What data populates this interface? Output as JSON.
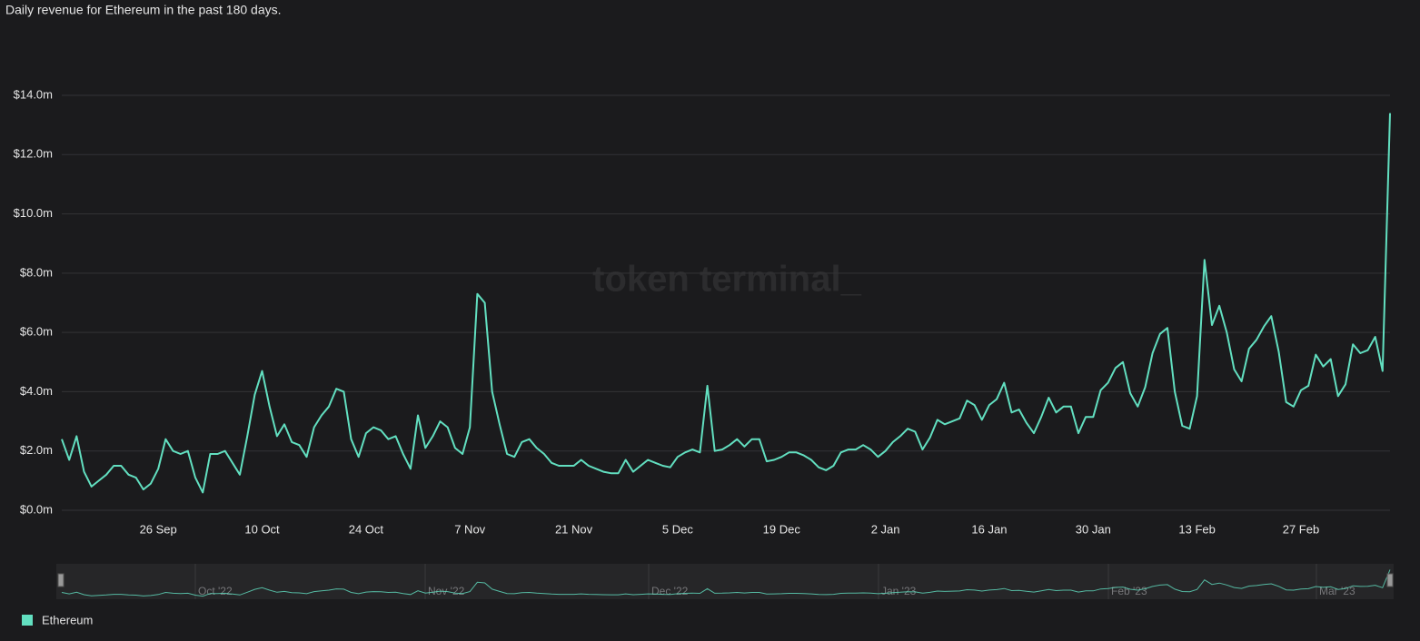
{
  "chart_data": {
    "type": "line",
    "title": "Daily revenue for Ethereum in the past 180 days.",
    "watermark": "token terminal_",
    "categories": [
      "13 Sep",
      "14 Sep",
      "15 Sep",
      "16 Sep",
      "17 Sep",
      "18 Sep",
      "19 Sep",
      "20 Sep",
      "21 Sep",
      "22 Sep",
      "23 Sep",
      "24 Sep",
      "25 Sep",
      "26 Sep",
      "27 Sep",
      "28 Sep",
      "29 Sep",
      "30 Sep",
      "1 Oct",
      "2 Oct",
      "3 Oct",
      "4 Oct",
      "5 Oct",
      "6 Oct",
      "7 Oct",
      "8 Oct",
      "9 Oct",
      "10 Oct",
      "11 Oct",
      "12 Oct",
      "13 Oct",
      "14 Oct",
      "15 Oct",
      "16 Oct",
      "17 Oct",
      "18 Oct",
      "19 Oct",
      "20 Oct",
      "21 Oct",
      "22 Oct",
      "23 Oct",
      "24 Oct",
      "25 Oct",
      "26 Oct",
      "27 Oct",
      "28 Oct",
      "29 Oct",
      "30 Oct",
      "31 Oct",
      "1 Nov",
      "2 Nov",
      "3 Nov",
      "4 Nov",
      "5 Nov",
      "6 Nov",
      "7 Nov",
      "8 Nov",
      "9 Nov",
      "10 Nov",
      "11 Nov",
      "12 Nov",
      "13 Nov",
      "14 Nov",
      "15 Nov",
      "16 Nov",
      "17 Nov",
      "18 Nov",
      "19 Nov",
      "20 Nov",
      "21 Nov",
      "22 Nov",
      "23 Nov",
      "24 Nov",
      "25 Nov",
      "26 Nov",
      "27 Nov",
      "28 Nov",
      "29 Nov",
      "30 Nov",
      "1 Dec",
      "2 Dec",
      "3 Dec",
      "4 Dec",
      "5 Dec",
      "6 Dec",
      "7 Dec",
      "8 Dec",
      "9 Dec",
      "10 Dec",
      "11 Dec",
      "12 Dec",
      "13 Dec",
      "14 Dec",
      "15 Dec",
      "16 Dec",
      "17 Dec",
      "18 Dec",
      "19 Dec",
      "20 Dec",
      "21 Dec",
      "22 Dec",
      "23 Dec",
      "24 Dec",
      "25 Dec",
      "26 Dec",
      "27 Dec",
      "28 Dec",
      "29 Dec",
      "30 Dec",
      "31 Dec",
      "1 Jan",
      "2 Jan",
      "3 Jan",
      "4 Jan",
      "5 Jan",
      "6 Jan",
      "7 Jan",
      "8 Jan",
      "9 Jan",
      "10 Jan",
      "11 Jan",
      "12 Jan",
      "13 Jan",
      "14 Jan",
      "15 Jan",
      "16 Jan",
      "17 Jan",
      "18 Jan",
      "19 Jan",
      "20 Jan",
      "21 Jan",
      "22 Jan",
      "23 Jan",
      "24 Jan",
      "25 Jan",
      "26 Jan",
      "27 Jan",
      "28 Jan",
      "29 Jan",
      "30 Jan",
      "31 Jan",
      "1 Feb",
      "2 Feb",
      "3 Feb",
      "4 Feb",
      "5 Feb",
      "6 Feb",
      "7 Feb",
      "8 Feb",
      "9 Feb",
      "10 Feb",
      "11 Feb",
      "12 Feb",
      "13 Feb",
      "14 Feb",
      "15 Feb",
      "16 Feb",
      "17 Feb",
      "18 Feb",
      "19 Feb",
      "20 Feb",
      "21 Feb",
      "22 Feb",
      "23 Feb",
      "24 Feb",
      "25 Feb",
      "26 Feb",
      "27 Feb",
      "28 Feb",
      "1 Mar",
      "2 Mar",
      "3 Mar",
      "4 Mar",
      "5 Mar",
      "6 Mar",
      "7 Mar",
      "8 Mar",
      "9 Mar",
      "10 Mar",
      "11 Mar"
    ],
    "series": [
      {
        "name": "Ethereum",
        "color": "#62dfc0",
        "values": [
          2.4,
          1.7,
          2.5,
          1.3,
          0.8,
          1.0,
          1.2,
          1.5,
          1.5,
          1.2,
          1.1,
          0.7,
          0.9,
          1.4,
          2.4,
          2.0,
          1.9,
          2.0,
          1.1,
          0.6,
          1.9,
          1.9,
          2.0,
          1.6,
          1.2,
          2.5,
          3.9,
          4.7,
          3.5,
          2.5,
          2.9,
          2.3,
          2.2,
          1.8,
          2.8,
          3.2,
          3.5,
          4.1,
          4.0,
          2.4,
          1.8,
          2.6,
          2.8,
          2.7,
          2.4,
          2.5,
          1.9,
          1.4,
          3.2,
          2.1,
          2.5,
          3.0,
          2.8,
          2.1,
          1.9,
          2.8,
          7.3,
          7.0,
          4.0,
          2.9,
          1.9,
          1.8,
          2.3,
          2.4,
          2.1,
          1.9,
          1.6,
          1.5,
          1.5,
          1.5,
          1.7,
          1.5,
          1.4,
          1.3,
          1.25,
          1.25,
          1.7,
          1.3,
          1.5,
          1.7,
          1.6,
          1.5,
          1.45,
          1.8,
          1.95,
          2.05,
          1.95,
          4.2,
          2.0,
          2.05,
          2.2,
          2.4,
          2.15,
          2.4,
          2.4,
          1.65,
          1.7,
          1.8,
          1.95,
          1.95,
          1.85,
          1.7,
          1.45,
          1.35,
          1.5,
          1.95,
          2.05,
          2.05,
          2.2,
          2.05,
          1.8,
          2.0,
          2.3,
          2.5,
          2.75,
          2.65,
          2.05,
          2.45,
          3.05,
          2.9,
          3.0,
          3.1,
          3.7,
          3.55,
          3.05,
          3.55,
          3.75,
          4.3,
          3.3,
          3.4,
          2.95,
          2.6,
          3.15,
          3.8,
          3.3,
          3.5,
          3.5,
          2.6,
          3.15,
          3.15,
          4.05,
          4.3,
          4.8,
          5.0,
          3.95,
          3.5,
          4.15,
          5.3,
          5.95,
          6.15,
          4.0,
          2.85,
          2.75,
          3.85,
          8.45,
          6.25,
          6.9,
          6.0,
          4.75,
          4.35,
          5.45,
          5.75,
          6.2,
          6.55,
          5.35,
          3.65,
          3.5,
          4.05,
          4.2,
          5.25,
          4.85,
          5.1,
          3.85,
          4.25,
          5.6,
          5.3,
          5.4,
          5.85,
          4.7,
          13.4
        ]
      }
    ],
    "xticks": [
      "26 Sep",
      "10 Oct",
      "24 Oct",
      "7 Nov",
      "21 Nov",
      "5 Dec",
      "19 Dec",
      "2 Jan",
      "16 Jan",
      "30 Jan",
      "13 Feb",
      "27 Feb"
    ],
    "ylim": [
      0,
      14
    ],
    "yticks": [
      {
        "value": 0,
        "label": "$0.0m"
      },
      {
        "value": 2,
        "label": "$2.0m"
      },
      {
        "value": 4,
        "label": "$4.0m"
      },
      {
        "value": 6,
        "label": "$6.0m"
      },
      {
        "value": 8,
        "label": "$8.0m"
      },
      {
        "value": 10,
        "label": "$10.0m"
      },
      {
        "value": 12,
        "label": "$12.0m"
      },
      {
        "value": 14,
        "label": "$14.0m"
      }
    ],
    "grid": true,
    "legend": "bottom-left",
    "navigator_labels": [
      "Oct '22",
      "Nov '22",
      "Dec '22",
      "Jan '23",
      "Feb '23",
      "Mar '23"
    ]
  }
}
